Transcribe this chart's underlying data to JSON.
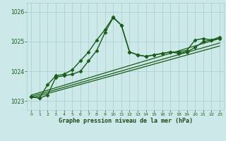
{
  "xlabel": "Graphe pression niveau de la mer (hPa)",
  "background_color": "#cce8e8",
  "grid_color": "#a8cccc",
  "line_color": "#1a5c1a",
  "ylim": [
    1022.7,
    1026.3
  ],
  "xlim": [
    -0.5,
    23.5
  ],
  "yticks": [
    1023,
    1024,
    1025,
    1026
  ],
  "xticks": [
    0,
    1,
    2,
    3,
    4,
    5,
    6,
    7,
    8,
    9,
    10,
    11,
    12,
    13,
    14,
    15,
    16,
    17,
    18,
    19,
    20,
    21,
    22,
    23
  ],
  "series": [
    {
      "x": [
        0,
        1,
        2,
        3,
        4,
        5,
        6,
        7,
        8,
        9,
        10,
        11,
        12,
        13,
        14,
        15,
        16,
        17,
        18,
        19,
        20,
        21,
        22,
        23
      ],
      "y": [
        1023.15,
        1023.1,
        1023.55,
        1023.85,
        1023.9,
        1024.05,
        1024.35,
        1024.65,
        1025.05,
        1025.4,
        1025.82,
        1025.55,
        1024.65,
        1024.55,
        1024.5,
        1024.55,
        1024.6,
        1024.65,
        1024.65,
        1024.7,
        1025.05,
        1025.1,
        1025.05,
        1025.15
      ],
      "marker": "D",
      "markersize": 2.5,
      "linewidth": 1.0
    },
    {
      "x": [
        0,
        23
      ],
      "y": [
        1023.1,
        1024.85
      ],
      "marker": null,
      "markersize": 0,
      "linewidth": 0.9
    },
    {
      "x": [
        0,
        23
      ],
      "y": [
        1023.15,
        1024.95
      ],
      "marker": null,
      "markersize": 0,
      "linewidth": 0.9
    },
    {
      "x": [
        0,
        23
      ],
      "y": [
        1023.2,
        1025.1
      ],
      "marker": null,
      "markersize": 0,
      "linewidth": 0.9
    },
    {
      "x": [
        0,
        1,
        2,
        3,
        4,
        5,
        6,
        7,
        8,
        9,
        10,
        11,
        12,
        13,
        14,
        15,
        16,
        17,
        18,
        19,
        20,
        21,
        22,
        23
      ],
      "y": [
        1023.15,
        1023.1,
        1023.2,
        1023.8,
        1023.85,
        1023.9,
        1024.0,
        1024.35,
        1024.7,
        1025.3,
        1025.8,
        1025.55,
        1024.65,
        1024.55,
        1024.5,
        1024.55,
        1024.6,
        1024.65,
        1024.6,
        1024.65,
        1024.8,
        1025.0,
        1025.05,
        1025.1
      ],
      "marker": "D",
      "markersize": 2.5,
      "linewidth": 1.0
    }
  ]
}
